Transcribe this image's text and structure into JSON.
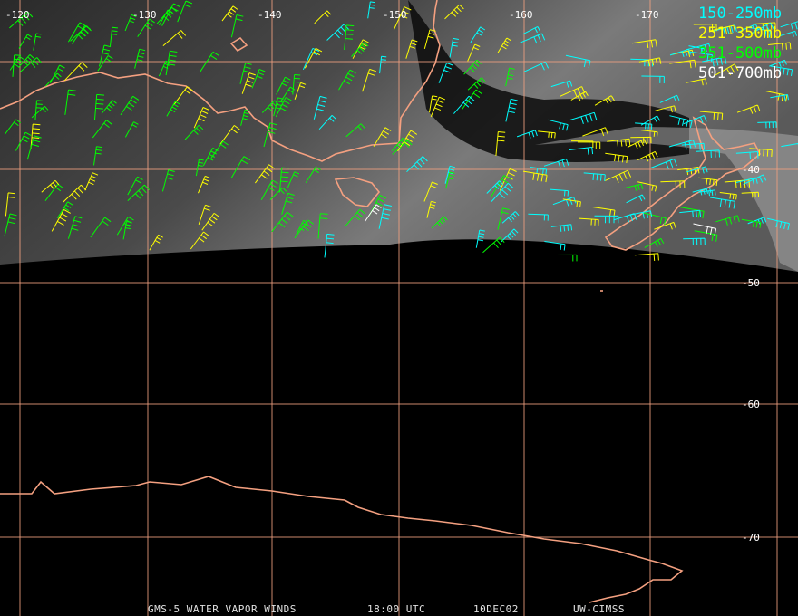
{
  "map": {
    "longitude_labels": [
      "-120",
      "-130",
      "-140",
      "-150",
      "-160",
      "-170"
    ],
    "latitude_labels": [
      "-40",
      "-50",
      "-60",
      "-70"
    ],
    "legend": [
      {
        "label": "150-250mb",
        "color": "#00ffff"
      },
      {
        "label": "251-350mb",
        "color": "#ffff00"
      },
      {
        "label": "351-500mb",
        "color": "#00ff00"
      },
      {
        "label": "501-700mb",
        "color": "#ffffff"
      }
    ],
    "footer": [
      "GMS-5 WATER VAPOR WINDS",
      "18:00 UTC",
      "10DEC02",
      "UW-CIMSS"
    ]
  }
}
